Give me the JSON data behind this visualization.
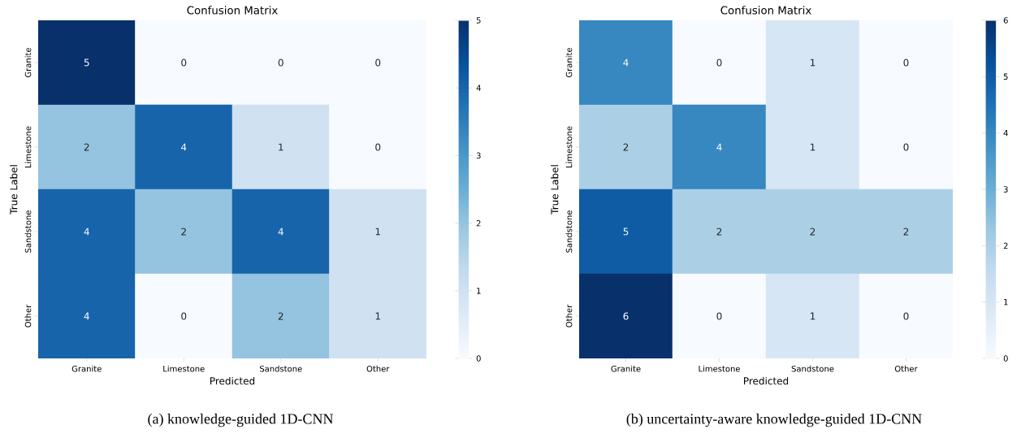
{
  "chart_data": [
    {
      "type": "heatmap",
      "title": "Confusion Matrix",
      "xlabel": "Predicted",
      "ylabel": "True Label",
      "categories": [
        "Granite",
        "Limestone",
        "Sandstone",
        "Other"
      ],
      "y_categories": [
        "Granite",
        "Limestone",
        "Sandstone",
        "Other"
      ],
      "cells": [
        [
          5,
          0,
          0,
          0
        ],
        [
          2,
          4,
          1,
          0
        ],
        [
          4,
          2,
          4,
          1
        ],
        [
          4,
          0,
          2,
          1
        ]
      ],
      "clim": [
        0,
        5
      ],
      "cticks": [
        0,
        1,
        2,
        3,
        4,
        5
      ],
      "data_labels": true,
      "annotations": [
        "(a) knowledge-guided 1D-CNN"
      ]
    },
    {
      "type": "heatmap",
      "title": "Confusion Matrix",
      "xlabel": "Predicted",
      "ylabel": "True Label",
      "categories": [
        "Granite",
        "Limestone",
        "Sandstone",
        "Other"
      ],
      "y_categories": [
        "Granite",
        "Limestone",
        "Sandstone",
        "Other"
      ],
      "cells": [
        [
          4,
          0,
          1,
          0
        ],
        [
          2,
          4,
          1,
          0
        ],
        [
          5,
          2,
          2,
          2
        ],
        [
          6,
          0,
          1,
          0
        ]
      ],
      "clim": [
        0,
        6
      ],
      "cticks": [
        0,
        1,
        2,
        3,
        4,
        5,
        6
      ],
      "data_labels": true,
      "annotations": [
        "(b) uncertainty-aware knowledge-guided 1D-CNN"
      ]
    }
  ]
}
